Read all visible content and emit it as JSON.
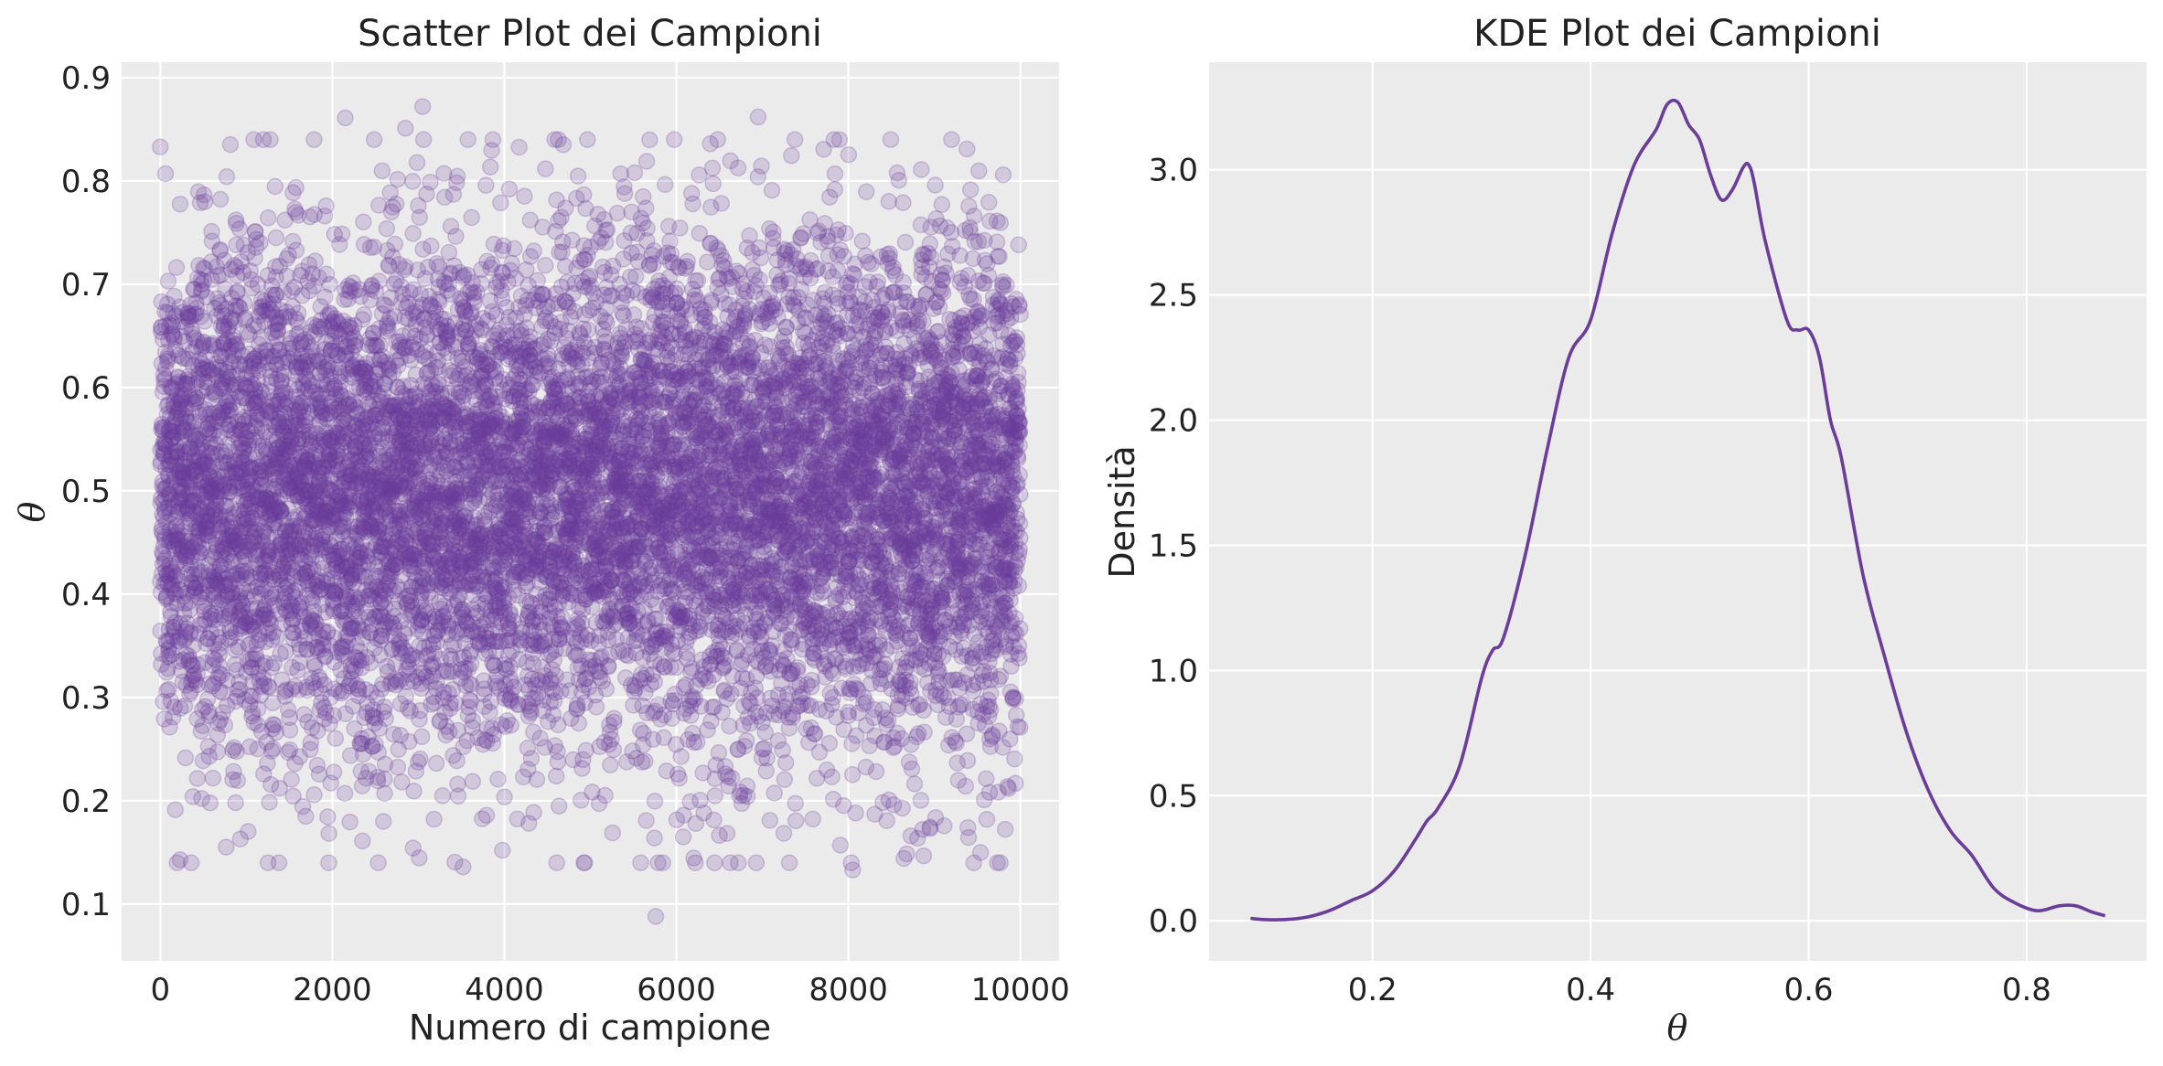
{
  "colors": {
    "plot_background": "#ebebeb",
    "grid": "#ffffff",
    "series": "#6a3d9a",
    "text": "#222222"
  },
  "chart_data": [
    {
      "type": "scatter",
      "title": "Scatter Plot dei Campioni",
      "xlabel": "Numero di campione",
      "ylabel": "θ",
      "xlim": [
        -450,
        10450
      ],
      "ylim": [
        0.045,
        0.915
      ],
      "xticks": [
        0,
        2000,
        4000,
        6000,
        8000,
        10000
      ],
      "xtick_labels": [
        "0",
        "2000",
        "4000",
        "6000",
        "8000",
        "10000"
      ],
      "yticks": [
        0.1,
        0.2,
        0.3,
        0.4,
        0.5,
        0.6,
        0.7,
        0.8,
        0.9
      ],
      "ytick_labels": [
        "0.1",
        "0.2",
        "0.3",
        "0.4",
        "0.5",
        "0.6",
        "0.7",
        "0.8",
        "0.9"
      ],
      "grid": true,
      "n_samples": 10000,
      "marker_alpha": 0.2,
      "distribution": {
        "kind": "normal",
        "mean": 0.5,
        "sd": 0.12,
        "min": 0.09,
        "max": 0.87
      },
      "notable_points": [
        {
          "x": 3050,
          "y": 0.872
        },
        {
          "x": 2150,
          "y": 0.861
        },
        {
          "x": 6950,
          "y": 0.862
        },
        {
          "x": 2850,
          "y": 0.851
        },
        {
          "x": 5760,
          "y": 0.088
        },
        {
          "x": 8050,
          "y": 0.133
        },
        {
          "x": 3520,
          "y": 0.136
        },
        {
          "x": 230,
          "y": 0.143
        },
        {
          "x": 2350,
          "y": 0.161
        },
        {
          "x": 930,
          "y": 0.163
        },
        {
          "x": 6080,
          "y": 0.165
        },
        {
          "x": 9610,
          "y": 0.182
        },
        {
          "x": 9390,
          "y": 0.174
        },
        {
          "x": 60,
          "y": 0.807
        },
        {
          "x": 9800,
          "y": 0.806
        }
      ]
    },
    {
      "type": "line",
      "title": "KDE Plot dei Campioni",
      "xlabel": "θ",
      "ylabel": "Densità",
      "xlim": [
        0.05,
        0.91
      ],
      "ylim": [
        -0.16,
        3.43
      ],
      "xticks": [
        0.2,
        0.4,
        0.6,
        0.8
      ],
      "xtick_labels": [
        "0.2",
        "0.4",
        "0.6",
        "0.8"
      ],
      "yticks": [
        0.0,
        0.5,
        1.0,
        1.5,
        2.0,
        2.5,
        3.0
      ],
      "ytick_labels": [
        "0.0",
        "0.5",
        "1.0",
        "1.5",
        "2.0",
        "2.5",
        "3.0"
      ],
      "grid": true,
      "series": [
        {
          "name": "KDE",
          "x": [
            0.088,
            0.1,
            0.12,
            0.14,
            0.16,
            0.18,
            0.2,
            0.22,
            0.24,
            0.25,
            0.26,
            0.28,
            0.3,
            0.31,
            0.32,
            0.34,
            0.36,
            0.38,
            0.4,
            0.42,
            0.44,
            0.46,
            0.47,
            0.48,
            0.49,
            0.5,
            0.51,
            0.52,
            0.53,
            0.54,
            0.545,
            0.55,
            0.56,
            0.58,
            0.59,
            0.6,
            0.61,
            0.62,
            0.63,
            0.65,
            0.67,
            0.69,
            0.71,
            0.73,
            0.75,
            0.77,
            0.79,
            0.81,
            0.83,
            0.845,
            0.86,
            0.872
          ],
          "y": [
            0.01,
            0.005,
            0.005,
            0.015,
            0.04,
            0.08,
            0.12,
            0.2,
            0.33,
            0.4,
            0.45,
            0.62,
            0.97,
            1.08,
            1.13,
            1.46,
            1.88,
            2.25,
            2.4,
            2.75,
            3.02,
            3.16,
            3.26,
            3.27,
            3.18,
            3.12,
            2.98,
            2.88,
            2.92,
            3.01,
            3.02,
            2.95,
            2.72,
            2.4,
            2.36,
            2.36,
            2.25,
            2.0,
            1.85,
            1.38,
            1.05,
            0.75,
            0.52,
            0.36,
            0.26,
            0.13,
            0.07,
            0.04,
            0.06,
            0.06,
            0.035,
            0.02
          ]
        }
      ]
    }
  ]
}
